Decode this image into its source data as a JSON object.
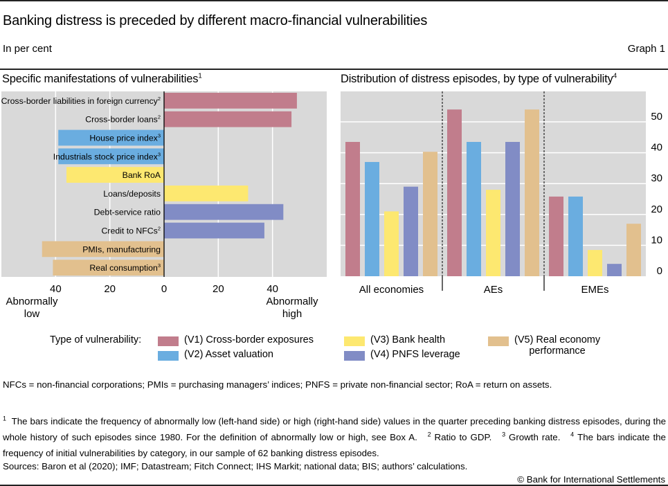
{
  "header": {
    "title": "Banking distress is preceded by different macro-financial vulnerabilities",
    "subtitle": "In per cent",
    "graph_number": "Graph 1"
  },
  "colors": {
    "V1": "#c17d8c",
    "V2": "#6aade0",
    "V3": "#fde870",
    "V4": "#818cc5",
    "V5": "#e2c08e",
    "plot_bg": "#d9d9d9",
    "grid": "#ffffff"
  },
  "legend": {
    "label": "Type of vulnerability:",
    "items": [
      {
        "key": "V1",
        "label": "(V1) Cross-border exposures"
      },
      {
        "key": "V2",
        "label": "(V2) Asset valuation"
      },
      {
        "key": "V3",
        "label": "(V3) Bank health"
      },
      {
        "key": "V4",
        "label": "(V4) PNFS leverage"
      },
      {
        "key": "V5",
        "label": "(V5) Real economy",
        "label_line2": "performance"
      }
    ]
  },
  "chart_data": [
    {
      "type": "bar",
      "orientation": "horizontal",
      "title": "Specific manifestations of vulnerabilities",
      "title_footnote": "1",
      "xlim": [
        -60,
        60
      ],
      "xticks": [
        -40,
        -20,
        0,
        20,
        40
      ],
      "xtick_labels": [
        "40",
        "20",
        "0",
        "20",
        "40"
      ],
      "xlabel_left": [
        "Abnormally",
        "low"
      ],
      "xlabel_right": [
        "Abnormally",
        "high"
      ],
      "grid": true,
      "categories": [
        {
          "label": "Cross-border liabilities in foreign currency",
          "footnote": "2",
          "group": "V1",
          "value": 49
        },
        {
          "label": "Cross-border loans",
          "footnote": "2",
          "group": "V1",
          "value": 47
        },
        {
          "label": "House price index",
          "footnote": "3",
          "group": "V2",
          "value": -39
        },
        {
          "label": "Industrials stock price index",
          "footnote": "3",
          "group": "V2",
          "value": -39
        },
        {
          "label": "Bank RoA",
          "footnote": "",
          "group": "V3",
          "value": -36
        },
        {
          "label": "Loans/deposits",
          "footnote": "",
          "group": "V3",
          "value": 31
        },
        {
          "label": "Debt-service ratio",
          "footnote": "",
          "group": "V4",
          "value": 44
        },
        {
          "label": "Credit to NFCs",
          "footnote": "2",
          "group": "V4",
          "value": 37
        },
        {
          "label": "PMIs, manufacturing",
          "footnote": "",
          "group": "V5",
          "value": -45
        },
        {
          "label": "Real consumption",
          "footnote": "3",
          "group": "V5",
          "value": -41
        }
      ]
    },
    {
      "type": "bar",
      "orientation": "vertical",
      "title": "Distribution of distress episodes, by type of vulnerability",
      "title_footnote": "4",
      "ylim": [
        0,
        60
      ],
      "yticks": [
        0,
        10,
        20,
        30,
        40,
        50
      ],
      "y_axis_side": "right",
      "grid": true,
      "categories": [
        "All economies",
        "AEs",
        "EMEs"
      ],
      "series": [
        {
          "name": "(V1) Cross-border exposures",
          "key": "V1",
          "values": [
            43.5,
            54,
            25.8
          ]
        },
        {
          "name": "(V2) Asset valuation",
          "key": "V2",
          "values": [
            37,
            43.5,
            25.8
          ]
        },
        {
          "name": "(V3) Bank health",
          "key": "V3",
          "values": [
            21,
            28,
            8.5
          ]
        },
        {
          "name": "(V4) PNFS leverage",
          "key": "V4",
          "values": [
            29,
            43.5,
            4
          ]
        },
        {
          "name": "(V5) Real economy performance",
          "key": "V5",
          "values": [
            40.3,
            54,
            17
          ]
        }
      ]
    }
  ],
  "notes": {
    "abbreviations": "NFCs = non-financial corporations; PMIs = purchasing managers’ indices; PNFS = private non-financial sector; RoA = return on assets.",
    "footnotes": [
      {
        "num": "1",
        "text": "The bars indicate the frequency of abnormally low (left-hand side) or high (right-hand side) values in the quarter preceding banking distress episodes, during the whole history of such episodes since 1980. For the definition of abnormally low or high, see Box A."
      },
      {
        "num": "2",
        "text": "Ratio to GDP."
      },
      {
        "num": "3",
        "text": "Growth rate."
      },
      {
        "num": "4",
        "text": "The bars indicate the frequency of initial vulnerabilities by category, in our sample of 62 banking distress episodes."
      }
    ],
    "sources": "Sources: Baron et al (2020); IMF; Datastream; Fitch Connect; IHS Markit; national data; BIS; authors’ calculations.",
    "copyright": "© Bank for International Settlements"
  }
}
